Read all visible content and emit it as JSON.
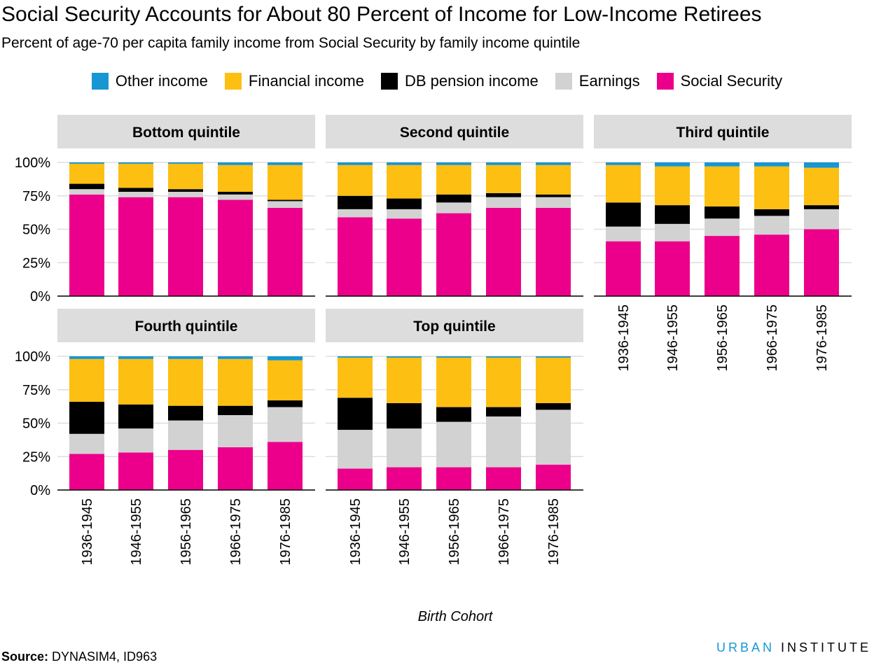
{
  "title": "Social Security Accounts for About 80 Percent of Income for Low-Income Retirees",
  "subtitle": "Percent of age-70 per capita family income from Social Security by family income quintile",
  "source_label": "Source:",
  "source_text": " DYNASIM4, ID963",
  "logo": {
    "first": "URBAN",
    "second": "INSTITUTE"
  },
  "colors": {
    "other": "#1696d2",
    "financial": "#fdbf11",
    "db": "#000000",
    "earnings": "#d2d2d2",
    "ss": "#ec008b",
    "strip": "#dedddd",
    "grid": "#dedede"
  },
  "legend": [
    {
      "key": "other",
      "label": "Other income"
    },
    {
      "key": "financial",
      "label": "Financial income"
    },
    {
      "key": "db",
      "label": "DB pension income"
    },
    {
      "key": "earnings",
      "label": "Earnings"
    },
    {
      "key": "ss",
      "label": "Social Security"
    }
  ],
  "chart_data": {
    "type": "bar",
    "stacked": true,
    "xlabel": "Birth Cohort",
    "ylim": [
      0,
      100
    ],
    "yticks": [
      "0%",
      "25%",
      "50%",
      "75%",
      "100%"
    ],
    "categories": [
      "1936-1945",
      "1946-1955",
      "1956-1965",
      "1966-1975",
      "1976-1985"
    ],
    "stack_order": [
      "ss",
      "earnings",
      "db",
      "financial",
      "other"
    ],
    "panels": [
      {
        "title": "Bottom quintile",
        "series": {
          "ss": [
            76,
            74,
            74,
            72,
            66
          ],
          "earnings": [
            4,
            4,
            4,
            4,
            5
          ],
          "db": [
            4,
            3,
            2,
            2,
            1
          ],
          "financial": [
            15,
            18,
            19,
            20,
            26
          ],
          "other": [
            1,
            1,
            1,
            2,
            2
          ]
        }
      },
      {
        "title": "Second quintile",
        "series": {
          "ss": [
            59,
            58,
            62,
            66,
            66
          ],
          "earnings": [
            6,
            7,
            8,
            8,
            8
          ],
          "db": [
            10,
            8,
            6,
            3,
            2
          ],
          "financial": [
            23,
            25,
            22,
            21,
            22
          ],
          "other": [
            2,
            2,
            2,
            2,
            2
          ]
        }
      },
      {
        "title": "Third quintile",
        "series": {
          "ss": [
            41,
            41,
            45,
            46,
            50
          ],
          "earnings": [
            11,
            13,
            13,
            14,
            15
          ],
          "db": [
            18,
            14,
            9,
            5,
            3
          ],
          "financial": [
            28,
            29,
            30,
            32,
            28
          ],
          "other": [
            2,
            3,
            3,
            3,
            4
          ]
        }
      },
      {
        "title": "Fourth quintile",
        "series": {
          "ss": [
            27,
            28,
            30,
            32,
            36
          ],
          "earnings": [
            15,
            18,
            22,
            24,
            26
          ],
          "db": [
            24,
            18,
            11,
            7,
            5
          ],
          "financial": [
            32,
            34,
            35,
            35,
            30
          ],
          "other": [
            2,
            2,
            2,
            2,
            3
          ]
        }
      },
      {
        "title": "Top quintile",
        "series": {
          "ss": [
            16,
            17,
            17,
            17,
            19
          ],
          "earnings": [
            29,
            29,
            34,
            38,
            41
          ],
          "db": [
            24,
            19,
            11,
            7,
            5
          ],
          "financial": [
            30,
            34,
            37,
            37,
            34
          ],
          "other": [
            1,
            1,
            1,
            1,
            1
          ]
        }
      }
    ]
  }
}
